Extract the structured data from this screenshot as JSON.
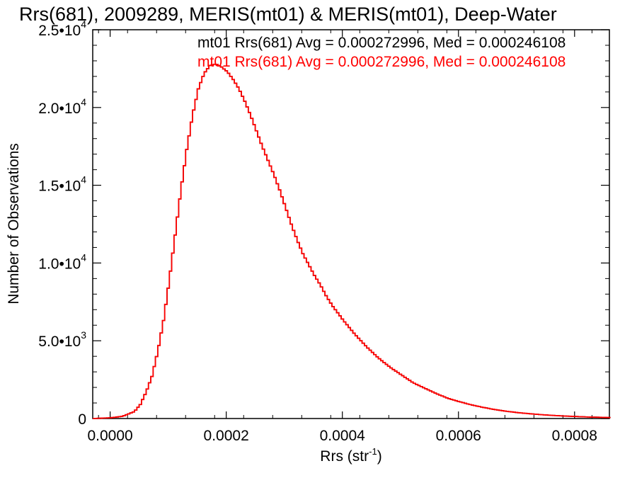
{
  "chart_data": {
    "type": "line",
    "title": "Rrs(681), 2009289, MERIS(mt01) & MERIS(mt01), Deep-Water",
    "xlabel": "Rrs (str",
    "xlabel_sup": "-1",
    "xlabel_end": ")",
    "ylabel": "Number of Observations",
    "xlim": [
      -3e-05,
      0.00086
    ],
    "ylim": [
      0,
      25000
    ],
    "x_ticks": [
      {
        "value": 0.0,
        "label": "0.0000"
      },
      {
        "value": 0.0002,
        "label": "0.0002"
      },
      {
        "value": 0.0004,
        "label": "0.0004"
      },
      {
        "value": 0.0006,
        "label": "0.0006"
      },
      {
        "value": 0.0008,
        "label": "0.0008"
      }
    ],
    "y_ticks": [
      {
        "value": 0,
        "base": "0",
        "exp": ""
      },
      {
        "value": 5000,
        "base": "5.0•10",
        "exp": "3"
      },
      {
        "value": 10000,
        "base": "1.0•10",
        "exp": "4"
      },
      {
        "value": 15000,
        "base": "1.5•10",
        "exp": "4"
      },
      {
        "value": 20000,
        "base": "2.0•10",
        "exp": "4"
      },
      {
        "value": 25000,
        "base": "2.5•10",
        "exp": "4"
      }
    ],
    "x": [
      -3e-05,
      0.0,
      2e-05,
      4e-05,
      5e-05,
      6e-05,
      7e-05,
      8e-05,
      9e-05,
      0.0001,
      0.00011,
      0.00012,
      0.00013,
      0.00014,
      0.00015,
      0.00016,
      0.00017,
      0.00018,
      0.00019,
      0.0002,
      0.00021,
      0.00022,
      0.00023,
      0.00024,
      0.00025,
      0.00026,
      0.00027,
      0.00028,
      0.00029,
      0.0003,
      0.00031,
      0.00032,
      0.00033,
      0.00034,
      0.00035,
      0.00036,
      0.00037,
      0.00038,
      0.00039,
      0.0004,
      0.00042,
      0.00044,
      0.00046,
      0.00048,
      0.0005,
      0.00052,
      0.00054,
      0.00056,
      0.00058,
      0.0006,
      0.00062,
      0.00064,
      0.00066,
      0.00068,
      0.0007,
      0.00072,
      0.00074,
      0.00076,
      0.00078,
      0.0008,
      0.00082,
      0.00084,
      0.00086
    ],
    "series": [
      {
        "name": "mt01 Rrs(681) Avg = 0.000272996, Med = 0.000246108",
        "color": "#000000",
        "values": [
          0,
          50,
          150,
          450,
          900,
          1700,
          2700,
          4300,
          6300,
          8900,
          11800,
          14700,
          17300,
          19500,
          21200,
          22200,
          22700,
          22800,
          22600,
          22300,
          21800,
          21200,
          20400,
          19500,
          18500,
          17500,
          16600,
          15700,
          14700,
          13600,
          12500,
          11500,
          10600,
          9900,
          9200,
          8600,
          7900,
          7300,
          6800,
          6300,
          5400,
          4600,
          3900,
          3300,
          2800,
          2300,
          1950,
          1600,
          1300,
          1080,
          880,
          720,
          580,
          470,
          380,
          310,
          250,
          200,
          160,
          130,
          100,
          80,
          60
        ]
      },
      {
        "name": "mt01 Rrs(681) Avg = 0.000272996, Med = 0.000246108",
        "color": "#ff0000",
        "values": [
          0,
          50,
          150,
          450,
          900,
          1700,
          2700,
          4300,
          6300,
          8900,
          11800,
          14700,
          17300,
          19500,
          21200,
          22200,
          22700,
          22800,
          22600,
          22300,
          21800,
          21200,
          20400,
          19500,
          18500,
          17500,
          16600,
          15700,
          14700,
          13600,
          12500,
          11500,
          10600,
          9900,
          9200,
          8600,
          7900,
          7300,
          6800,
          6300,
          5400,
          4600,
          3900,
          3300,
          2800,
          2300,
          1950,
          1600,
          1300,
          1080,
          880,
          720,
          580,
          470,
          380,
          310,
          250,
          200,
          160,
          130,
          100,
          80,
          60
        ]
      }
    ],
    "grid": false,
    "legend_placement": "top-right"
  }
}
